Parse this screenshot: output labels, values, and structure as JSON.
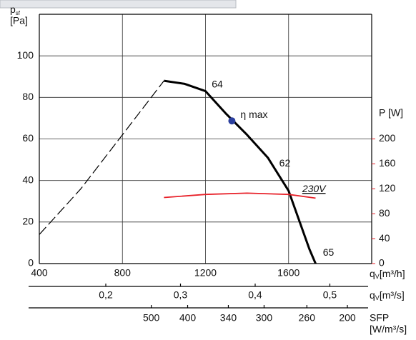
{
  "chart_data": {
    "type": "line",
    "y_label": {
      "symbol": "p",
      "sub": "sf",
      "unit": "[Pa]"
    },
    "y2_label": "P [W]",
    "x_label": {
      "symbol": "q",
      "sub": "V",
      "unit": "[m³/h]"
    },
    "x2_label": {
      "symbol": "q",
      "sub": "V",
      "unit": "[m³/s]"
    },
    "x3_label": {
      "symbol": "SFP",
      "unit": "[W/m³/s]"
    },
    "xlim": [
      400,
      2000
    ],
    "xticks": [
      400,
      800,
      1200,
      1600
    ],
    "ylim": [
      0,
      120
    ],
    "yticks": [
      0,
      20,
      40,
      60,
      80,
      100
    ],
    "y2lim": [
      0,
      400
    ],
    "y2ticks": [
      0,
      40,
      80,
      120,
      160,
      200
    ],
    "x2lim": [
      0.111,
      0.556
    ],
    "x2ticks": [
      {
        "value": 0.2,
        "label": "0,2"
      },
      {
        "value": 0.3,
        "label": "0,3"
      },
      {
        "value": 0.4,
        "label": "0,4"
      },
      {
        "value": 0.5,
        "label": "0,5"
      }
    ],
    "x3ticks": [
      500,
      400,
      340,
      300,
      260,
      200
    ],
    "x3ticks_at": [
      939,
      1114,
      1310,
      1482,
      1688,
      1883
    ],
    "grid": true,
    "series": [
      {
        "color": "#000000",
        "style": "dashed",
        "x": [
          400,
          600,
          800,
          1000
        ],
        "values": [
          14,
          36,
          62,
          88
        ]
      },
      {
        "color": "#000000",
        "style": "solid",
        "x": [
          1000,
          1100,
          1200,
          1300,
          1400,
          1500,
          1600,
          1700,
          1730
        ],
        "values": [
          88,
          86.5,
          83,
          72,
          62,
          51,
          35,
          7,
          0
        ]
      },
      {
        "color": "#e8222a",
        "style": "solid",
        "axis": "y2",
        "label": "230V",
        "x": [
          1000,
          1200,
          1400,
          1600,
          1730
        ],
        "values": [
          106,
          111,
          113,
          111,
          105
        ]
      }
    ],
    "annotations": [
      {
        "text": "64",
        "x": 1230,
        "y": 86
      },
      {
        "text": "62",
        "x": 1555,
        "y": 48
      },
      {
        "text": "65",
        "x": 1765,
        "y": 5
      }
    ],
    "eta_max": {
      "label": "η max",
      "x": 1327,
      "y": 68.7,
      "color": "#2b3f9e"
    }
  }
}
